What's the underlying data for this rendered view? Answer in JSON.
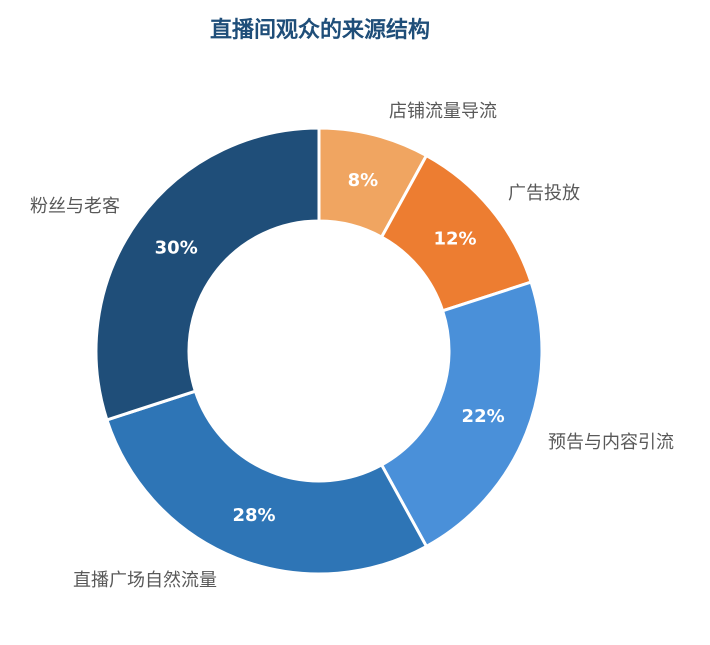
{
  "chart_data": {
    "type": "pie",
    "title": "直播间观众的来源结构",
    "title_color": "#1f4e79",
    "label_color": "#595959",
    "donut": true,
    "slices": [
      {
        "label": "店铺流量导流",
        "value": 8,
        "value_label": "8%",
        "color": "#f0a561"
      },
      {
        "label": "广告投放",
        "value": 12,
        "value_label": "12%",
        "color": "#ed7d31"
      },
      {
        "label": "预告与内容引流",
        "value": 22,
        "value_label": "22%",
        "color": "#4a90d9"
      },
      {
        "label": "直播广场自然流量",
        "value": 28,
        "value_label": "28%",
        "color": "#2e75b6"
      },
      {
        "label": "粉丝与老客",
        "value": 30,
        "value_label": "30%",
        "color": "#1f4e79"
      }
    ]
  }
}
